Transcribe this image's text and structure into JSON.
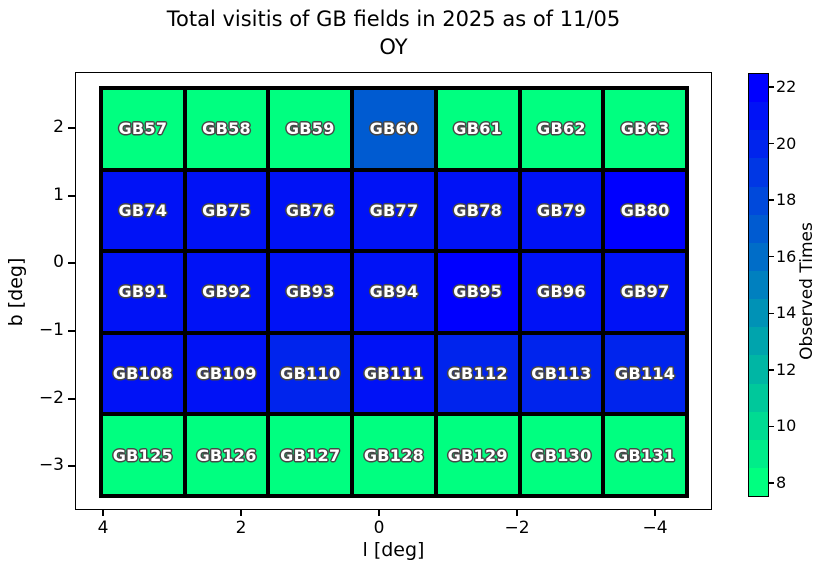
{
  "title": {
    "line1": "Total visitis of GB fields in 2025 as of 11/05",
    "line2": "OY"
  },
  "axes": {
    "xlabel": "l [deg]",
    "ylabel": "b [deg]",
    "x_tick_labels": [
      "4",
      "2",
      "0",
      "−2",
      "−4"
    ],
    "y_tick_labels": [
      "2",
      "1",
      "0",
      "−1",
      "−2",
      "−3"
    ]
  },
  "colorbar": {
    "label": "Observed Times",
    "tick_labels": [
      "22",
      "20",
      "18",
      "16",
      "14",
      "12",
      "10",
      "8"
    ],
    "vmin": 7.5,
    "vmax": 22.5,
    "n_segments": 15,
    "colormap": "winter_r",
    "color_low": "#00ff80",
    "color_high": "#0000ff"
  },
  "chart_data": {
    "type": "heatmap",
    "title": "Total visitis of GB fields in 2025 as of 11/05\nOY",
    "xlabel": "l [deg]",
    "ylabel": "b [deg]",
    "colorbar_label": "Observed Times",
    "colormap": "winter_r",
    "value_range": [
      7.5,
      22.5
    ],
    "x_axis": {
      "ticks": [
        4,
        2,
        0,
        -2,
        -4
      ],
      "inverted": true
    },
    "y_axis": {
      "ticks": [
        2,
        1,
        0,
        -1,
        -2,
        -3
      ]
    },
    "colorbar_ticks": [
      22,
      20,
      18,
      16,
      14,
      12,
      10,
      8
    ],
    "rows": [
      {
        "b_row": 2,
        "cells": [
          {
            "label": "GB57",
            "value": 8
          },
          {
            "label": "GB58",
            "value": 8
          },
          {
            "label": "GB59",
            "value": 8
          },
          {
            "label": "GB60",
            "value": 17
          },
          {
            "label": "GB61",
            "value": 8
          },
          {
            "label": "GB62",
            "value": 8
          },
          {
            "label": "GB63",
            "value": 8
          }
        ]
      },
      {
        "b_row": 1,
        "cells": [
          {
            "label": "GB74",
            "value": 21
          },
          {
            "label": "GB75",
            "value": 21
          },
          {
            "label": "GB76",
            "value": 21
          },
          {
            "label": "GB77",
            "value": 21
          },
          {
            "label": "GB78",
            "value": 21
          },
          {
            "label": "GB79",
            "value": 21
          },
          {
            "label": "GB80",
            "value": 22
          }
        ]
      },
      {
        "b_row": 0,
        "cells": [
          {
            "label": "GB91",
            "value": 21
          },
          {
            "label": "GB92",
            "value": 21
          },
          {
            "label": "GB93",
            "value": 21
          },
          {
            "label": "GB94",
            "value": 21
          },
          {
            "label": "GB95",
            "value": 22
          },
          {
            "label": "GB96",
            "value": 21
          },
          {
            "label": "GB97",
            "value": 21
          }
        ]
      },
      {
        "b_row": -1,
        "cells": [
          {
            "label": "GB108",
            "value": 21
          },
          {
            "label": "GB109",
            "value": 21
          },
          {
            "label": "GB110",
            "value": 20
          },
          {
            "label": "GB111",
            "value": 21
          },
          {
            "label": "GB112",
            "value": 20
          },
          {
            "label": "GB113",
            "value": 20
          },
          {
            "label": "GB114",
            "value": 20
          }
        ]
      },
      {
        "b_row": -2,
        "cells": [
          {
            "label": "GB125",
            "value": 8
          },
          {
            "label": "GB126",
            "value": 8
          },
          {
            "label": "GB127",
            "value": 8
          },
          {
            "label": "GB128",
            "value": 8
          },
          {
            "label": "GB129",
            "value": 8
          },
          {
            "label": "GB130",
            "value": 8
          },
          {
            "label": "GB131",
            "value": 8
          }
        ]
      }
    ]
  }
}
